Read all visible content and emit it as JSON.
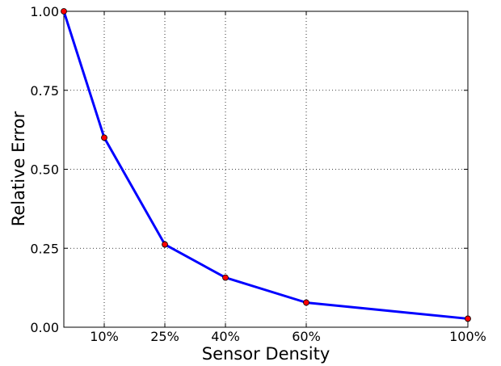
{
  "chart_data": {
    "type": "line",
    "xlabel": "Sensor Density",
    "ylabel": "Relative Error",
    "x": [
      0,
      10,
      25,
      40,
      60,
      100
    ],
    "x_tick_values": [
      10,
      25,
      40,
      60,
      100
    ],
    "x_tick_labels": [
      "10%",
      "25%",
      "40%",
      "60%",
      "100%"
    ],
    "xlim": [
      0,
      100
    ],
    "y_tick_values": [
      0.0,
      0.25,
      0.5,
      0.75,
      1.0
    ],
    "y_tick_labels": [
      "0.00",
      "0.25",
      "0.50",
      "0.75",
      "1.00"
    ],
    "ylim": [
      0,
      1.0
    ],
    "grid": true,
    "series": [
      {
        "values": [
          1.0,
          0.6,
          0.262,
          0.157,
          0.078,
          0.027
        ],
        "color": "#0000ff",
        "marker_color": "#ff0000"
      }
    ]
  }
}
